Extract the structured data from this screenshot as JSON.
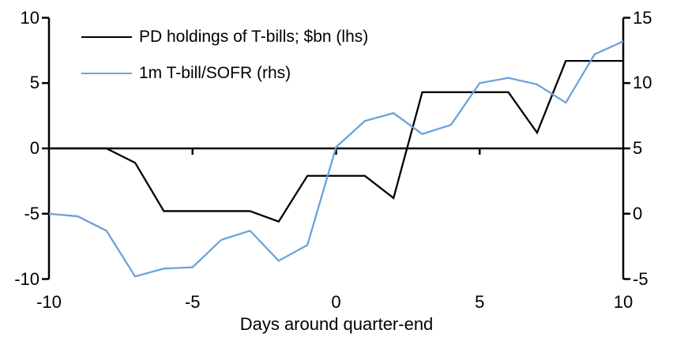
{
  "chart_data": {
    "type": "line",
    "title": "",
    "xlabel": "Days around quarter-end",
    "x": [
      -10,
      -9,
      -8,
      -7,
      -6,
      -5,
      -4,
      -3,
      -2,
      -1,
      0,
      1,
      2,
      3,
      4,
      5,
      6,
      7,
      8,
      9,
      10
    ],
    "series": [
      {
        "name": "PD holdings of T-bills; $bn (lhs)",
        "axis": "left",
        "color": "#000000",
        "values": [
          0,
          0,
          0,
          -1.1,
          -4.8,
          -4.8,
          -4.8,
          -4.8,
          -5.6,
          -2.1,
          -2.1,
          -2.1,
          -3.8,
          4.3,
          4.3,
          4.3,
          4.3,
          1.2,
          6.7,
          6.7,
          6.7
        ]
      },
      {
        "name": "1m T-bill/SOFR (rhs)",
        "axis": "right",
        "color": "#6AA3DA",
        "values": [
          0.0,
          -0.2,
          -1.3,
          -4.8,
          -4.2,
          -4.1,
          -2.0,
          -1.3,
          -3.6,
          -2.4,
          5.1,
          7.1,
          7.7,
          6.1,
          6.8,
          10.0,
          10.4,
          9.9,
          8.5,
          12.2,
          13.2
        ]
      }
    ],
    "left_axis": {
      "ticks": [
        10,
        5,
        0,
        -5,
        -10
      ],
      "range": [
        -10,
        10
      ]
    },
    "right_axis": {
      "ticks": [
        15,
        10,
        5,
        0,
        -5
      ],
      "range": [
        -5,
        15
      ]
    },
    "x_axis": {
      "ticks": [
        -10,
        -5,
        0,
        5,
        10
      ],
      "range": [
        -10,
        10
      ]
    },
    "legend_position": "top-left",
    "grid": "off",
    "axis_color": "#000000"
  }
}
